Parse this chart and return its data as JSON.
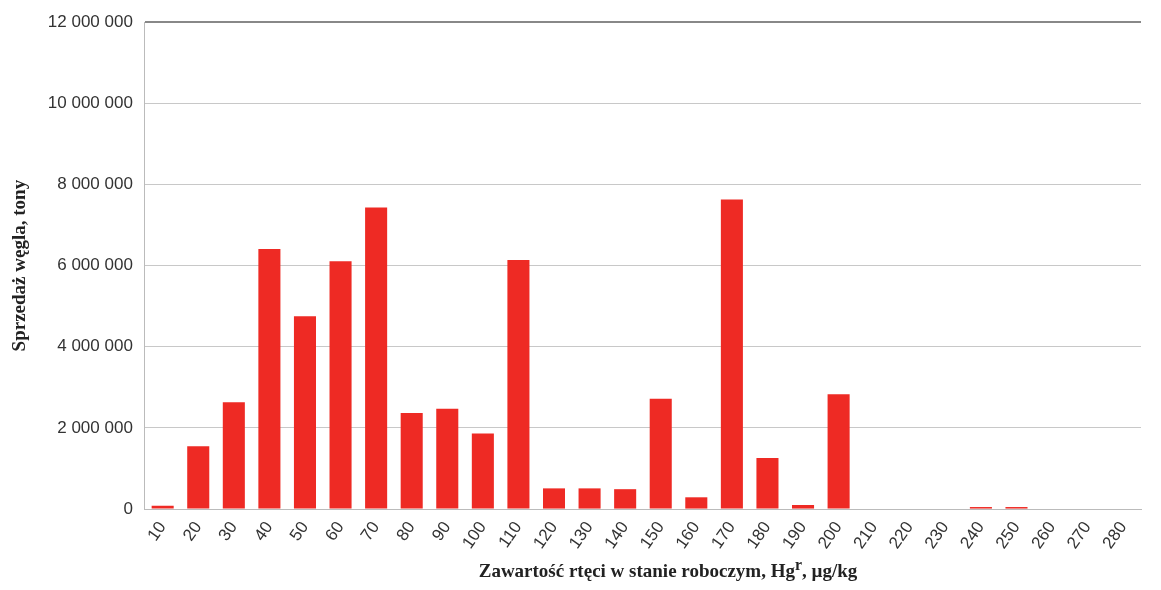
{
  "chart_data": {
    "type": "bar",
    "xlabel": "Zawartość rtęci w stanie roboczym, Hg$^{r}$, µg/kg",
    "ylabel": "Sprzedaż węgla, tony",
    "categories": [
      "10",
      "20",
      "30",
      "40",
      "50",
      "60",
      "70",
      "80",
      "90",
      "100",
      "110",
      "120",
      "130",
      "140",
      "150",
      "160",
      "170",
      "180",
      "190",
      "200",
      "210",
      "220",
      "230",
      "240",
      "250",
      "260",
      "270",
      "280"
    ],
    "values": [
      80000,
      1550000,
      2630000,
      6410000,
      4750000,
      6110000,
      7430000,
      2370000,
      2470000,
      1860000,
      6140000,
      510000,
      510000,
      490000,
      2720000,
      290000,
      7630000,
      1260000,
      100000,
      2830000,
      0,
      0,
      0,
      50000,
      50000,
      0,
      0,
      0
    ],
    "color": "#ee2a24",
    "ylim": [
      0,
      12000000
    ],
    "yticks": [
      0,
      2000000,
      4000000,
      6000000,
      8000000,
      10000000,
      12000000
    ],
    "grid": "y",
    "legend": false
  }
}
